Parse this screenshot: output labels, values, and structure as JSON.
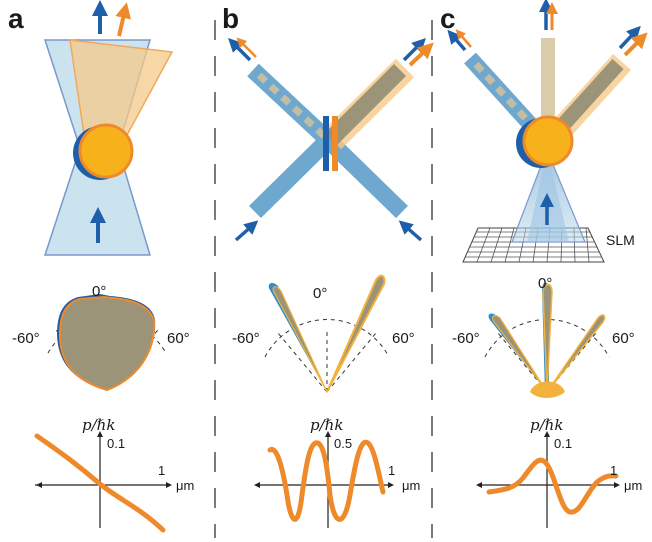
{
  "colors": {
    "blue": "#1f5ea8",
    "orange": "#ef8a2b",
    "beam_blue": "#b9d8ea",
    "beam_orange": "#f6c98a",
    "sphere": "#f7b21b",
    "polar_fill": "#9c9478",
    "divider": "#333333"
  },
  "panels": [
    {
      "letter": "a",
      "polar": {
        "left": "-60°",
        "center": "0°",
        "right": "60°"
      },
      "momentum": {
        "ylabel": "p/ℏk",
        "ytick": "0.1",
        "xtick": "1",
        "xunit": "μm"
      }
    },
    {
      "letter": "b",
      "polar": {
        "left": "-60°",
        "center": "0°",
        "right": "60°"
      },
      "momentum": {
        "ylabel": "p/ℏk",
        "ytick": "0.5",
        "xtick": "1",
        "xunit": "μm"
      }
    },
    {
      "letter": "c",
      "slm_label": "SLM",
      "polar": {
        "left": "-60°",
        "center": "0°",
        "right": "60°"
      },
      "momentum": {
        "ylabel": "p/ℏk",
        "ytick": "0.1",
        "xtick": "1",
        "xunit": "μm"
      }
    }
  ]
}
